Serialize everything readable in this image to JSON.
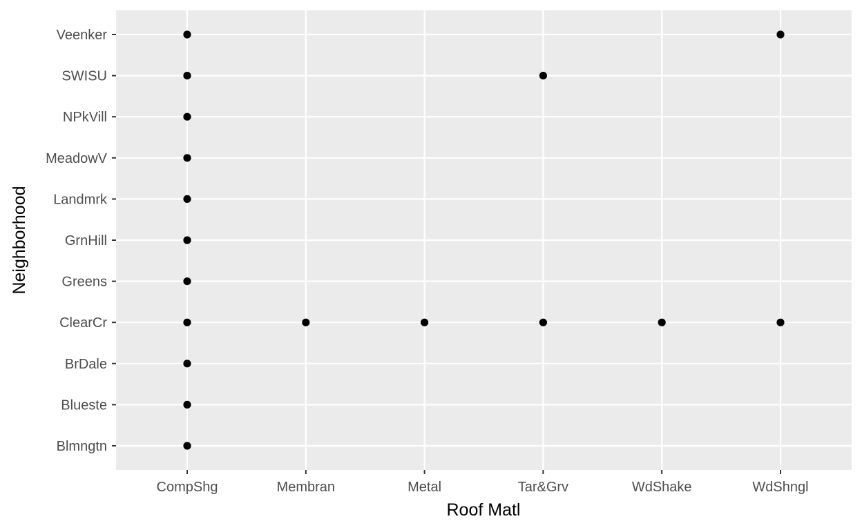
{
  "chart_data": {
    "type": "scatter",
    "title": "",
    "xlabel": "Roof Matl",
    "ylabel": "Neighborhood",
    "x_categories": [
      "CompShg",
      "Membran",
      "Metal",
      "Tar&Grv",
      "WdShake",
      "WdShngl"
    ],
    "y_categories": [
      "Blmngtn",
      "Blueste",
      "BrDale",
      "ClearCr",
      "Greens",
      "GrnHill",
      "Landmrk",
      "MeadowV",
      "NPkVill",
      "SWISU",
      "Veenker"
    ],
    "points": [
      {
        "x": "CompShg",
        "y": "Blmngtn"
      },
      {
        "x": "CompShg",
        "y": "Blueste"
      },
      {
        "x": "CompShg",
        "y": "BrDale"
      },
      {
        "x": "CompShg",
        "y": "ClearCr"
      },
      {
        "x": "CompShg",
        "y": "Greens"
      },
      {
        "x": "CompShg",
        "y": "GrnHill"
      },
      {
        "x": "CompShg",
        "y": "Landmrk"
      },
      {
        "x": "CompShg",
        "y": "MeadowV"
      },
      {
        "x": "CompShg",
        "y": "NPkVill"
      },
      {
        "x": "CompShg",
        "y": "SWISU"
      },
      {
        "x": "CompShg",
        "y": "Veenker"
      },
      {
        "x": "Membran",
        "y": "ClearCr"
      },
      {
        "x": "Metal",
        "y": "ClearCr"
      },
      {
        "x": "Tar&Grv",
        "y": "ClearCr"
      },
      {
        "x": "Tar&Grv",
        "y": "SWISU"
      },
      {
        "x": "WdShake",
        "y": "ClearCr"
      },
      {
        "x": "WdShngl",
        "y": "ClearCr"
      },
      {
        "x": "WdShngl",
        "y": "Veenker"
      }
    ],
    "grid": true,
    "legend": "none",
    "colors": {
      "panel": "#ebebeb",
      "grid": "#ffffff",
      "point": "#000000",
      "tick": "#333333",
      "tick_label": "#4d4d4d",
      "axis_title": "#000000"
    }
  }
}
